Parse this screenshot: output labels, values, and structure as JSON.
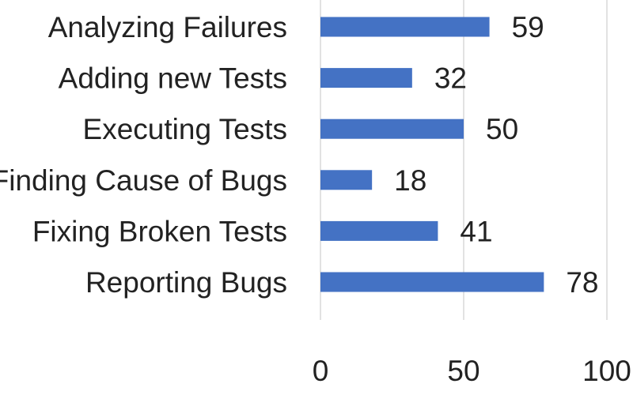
{
  "chart_data": {
    "type": "bar",
    "orientation": "horizontal",
    "title": "",
    "xlabel": "",
    "ylabel": "",
    "categories": [
      "Analyzing Failures",
      "Adding new Tests",
      "Executing Tests",
      "Finding Cause of Bugs",
      "Fixing Broken Tests",
      "Reporting Bugs"
    ],
    "values": [
      59,
      32,
      50,
      18,
      41,
      78
    ],
    "value_labels": [
      "59",
      "32",
      "50",
      "18",
      "41",
      "78"
    ],
    "xlim": [
      0,
      100
    ],
    "xticks": [
      0,
      50,
      100
    ],
    "xtick_labels": [
      "0",
      "50",
      "100"
    ],
    "grid": "vertical",
    "legend": "none",
    "colors": {
      "bar": "#4472C4",
      "grid": "#d9d9d9",
      "text": "#222222"
    }
  }
}
